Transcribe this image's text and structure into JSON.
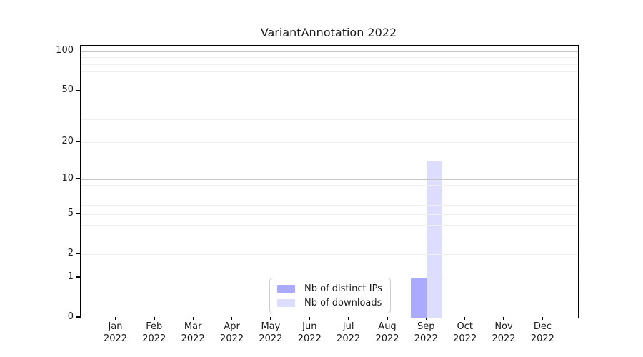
{
  "chart_data": {
    "type": "bar",
    "title": "VariantAnnotation 2022",
    "x": {
      "categories": [
        "Jan",
        "Feb",
        "Mar",
        "Apr",
        "May",
        "Jun",
        "Jul",
        "Aug",
        "Sep",
        "Oct",
        "Nov",
        "Dec"
      ],
      "year": "2022"
    },
    "series": [
      {
        "name": "Nb of distinct IPs",
        "color": "#aaaaff",
        "values": [
          0,
          0,
          0,
          0,
          0,
          0,
          0,
          0,
          1,
          0,
          0,
          0
        ]
      },
      {
        "name": "Nb of downloads",
        "color": "#ddddff",
        "values": [
          0,
          0,
          0,
          0,
          0,
          0,
          0,
          0,
          14,
          0,
          0,
          0
        ]
      }
    ],
    "y_axis": {
      "scale": "log1p",
      "tick_values": [
        0,
        1,
        2,
        5,
        10,
        20,
        50,
        100
      ],
      "major_gridlines": [
        1,
        10,
        100
      ],
      "minor_gridlines": [
        2,
        3,
        4,
        5,
        6,
        7,
        8,
        9,
        20,
        30,
        40,
        50,
        60,
        70,
        80,
        90
      ],
      "ylim": [
        0,
        111
      ]
    },
    "legend": {
      "position": "bottom-center",
      "entries": [
        "Nb of distinct IPs",
        "Nb of downloads"
      ]
    }
  },
  "colors": {
    "major_grid": "#c6c6c6",
    "minor_grid": "#efefef",
    "axis_frame": "#000000",
    "legend_border": "#cccccc",
    "text": "#000000"
  }
}
